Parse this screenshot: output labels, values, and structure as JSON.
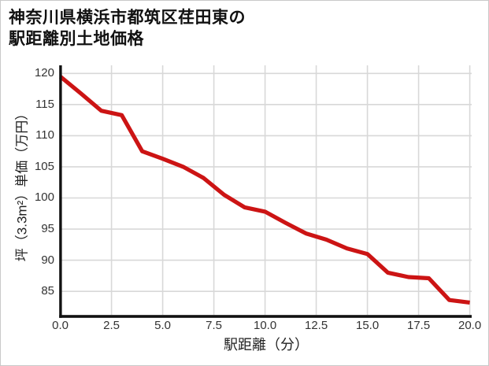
{
  "title": {
    "line1": "神奈川県横浜市都筑区荏田東の",
    "line2": "駅距離別土地価格"
  },
  "chart_data": {
    "type": "line",
    "title": "神奈川県横浜市都筑区荏田東の駅距離別土地価格",
    "xlabel": "駅距離（分）",
    "ylabel": "坪（3.3m²）単価（万円）",
    "x": [
      0,
      1,
      2,
      3,
      4,
      5,
      6,
      7,
      8,
      9,
      10,
      11,
      12,
      13,
      14,
      15,
      16,
      17,
      18,
      19,
      20
    ],
    "values": [
      119.5,
      116.8,
      114.0,
      113.3,
      107.5,
      106.3,
      105.0,
      103.2,
      100.5,
      98.5,
      97.8,
      96.0,
      94.3,
      93.3,
      91.9,
      91.0,
      88.0,
      87.3,
      87.1,
      83.6,
      83.2
    ],
    "xlim": [
      0,
      20
    ],
    "ylim": [
      81,
      121.3
    ],
    "xticks": [
      {
        "value": 0,
        "label": "0.0"
      },
      {
        "value": 2.5,
        "label": "2.5"
      },
      {
        "value": 5,
        "label": "5.0"
      },
      {
        "value": 7.5,
        "label": "7.5"
      },
      {
        "value": 10,
        "label": "10.0"
      },
      {
        "value": 12.5,
        "label": "12.5"
      },
      {
        "value": 15,
        "label": "15.0"
      },
      {
        "value": 17.5,
        "label": "17.5"
      },
      {
        "value": 20,
        "label": "20.0"
      }
    ],
    "yticks": [
      {
        "value": 85,
        "label": "85"
      },
      {
        "value": 90,
        "label": "90"
      },
      {
        "value": 95,
        "label": "95"
      },
      {
        "value": 100,
        "label": "100"
      },
      {
        "value": 105,
        "label": "105"
      },
      {
        "value": 110,
        "label": "110"
      },
      {
        "value": 115,
        "label": "115"
      },
      {
        "value": 120,
        "label": "120"
      }
    ],
    "grid": true,
    "legend": "none",
    "line_color": "#cc1414",
    "axis_color": "#111111",
    "grid_color": "#d8d8d8",
    "text_color": "#333333"
  }
}
